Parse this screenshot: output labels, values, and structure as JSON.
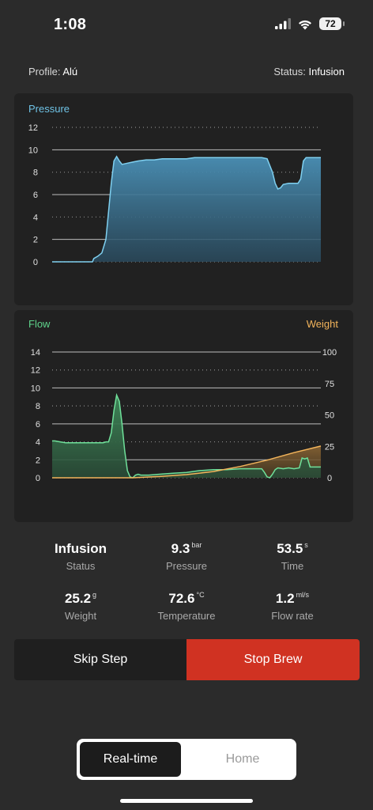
{
  "status_bar": {
    "time": "1:08",
    "battery": "72"
  },
  "profile": {
    "label": "Profile:",
    "value": "Alú"
  },
  "status": {
    "label": "Status:",
    "value": "Infusion"
  },
  "pressure_chart_data": {
    "type": "area",
    "title": "Pressure",
    "ylim": [
      0,
      12
    ],
    "yticks": [
      "12",
      "10",
      "8",
      "6",
      "4",
      "2",
      "0"
    ],
    "color": "#6fc3e6",
    "points": [
      [
        0,
        0
      ],
      [
        1,
        0
      ],
      [
        2,
        0
      ],
      [
        3,
        0
      ],
      [
        4,
        0
      ],
      [
        5,
        0
      ],
      [
        6,
        0
      ],
      [
        7,
        0
      ],
      [
        8,
        0
      ],
      [
        9,
        0
      ],
      [
        10,
        0
      ],
      [
        11,
        0
      ],
      [
        12,
        0
      ],
      [
        13,
        0
      ],
      [
        14,
        0
      ],
      [
        15,
        0
      ],
      [
        15.5,
        0.3
      ],
      [
        17,
        0.5
      ],
      [
        18.5,
        0.8
      ],
      [
        20,
        2
      ],
      [
        21,
        4.5
      ],
      [
        22,
        7
      ],
      [
        23,
        9
      ],
      [
        24,
        9.4
      ],
      [
        25,
        9
      ],
      [
        26,
        8.7
      ],
      [
        28,
        8.8
      ],
      [
        30,
        8.9
      ],
      [
        32,
        9
      ],
      [
        35,
        9.1
      ],
      [
        38,
        9.1
      ],
      [
        41,
        9.2
      ],
      [
        44,
        9.2
      ],
      [
        47,
        9.2
      ],
      [
        50,
        9.2
      ],
      [
        53,
        9.3
      ],
      [
        56,
        9.3
      ],
      [
        59,
        9.3
      ],
      [
        62,
        9.3
      ],
      [
        65,
        9.3
      ],
      [
        68,
        9.3
      ],
      [
        71,
        9.3
      ],
      [
        74,
        9.3
      ],
      [
        78,
        9.3
      ],
      [
        80,
        9.2
      ],
      [
        82,
        8
      ],
      [
        83,
        7
      ],
      [
        84,
        6.5
      ],
      [
        85,
        6.6
      ],
      [
        86,
        6.9
      ],
      [
        88,
        7
      ],
      [
        90,
        7
      ],
      [
        91.5,
        7
      ],
      [
        92.5,
        7.4
      ],
      [
        93.5,
        9
      ],
      [
        94.5,
        9.3
      ],
      [
        96,
        9.3
      ],
      [
        97,
        9.3
      ],
      [
        100,
        9.3
      ]
    ]
  },
  "flow_chart_data": {
    "type": "area",
    "title_left": "Flow",
    "title_right": "Weight",
    "y_left_lim": [
      0,
      14
    ],
    "y_left_ticks": [
      "14",
      "12",
      "10",
      "8",
      "6",
      "4",
      "2",
      "0"
    ],
    "y_right_lim": [
      0,
      100
    ],
    "y_right_ticks": [
      "100",
      "75",
      "50",
      "25",
      "0"
    ],
    "flow_color": "#5fd38b",
    "weight_color": "#f2b45b",
    "flow_points": [
      [
        0,
        4.1
      ],
      [
        1,
        4.1
      ],
      [
        3,
        4
      ],
      [
        5,
        3.9
      ],
      [
        8,
        3.9
      ],
      [
        11,
        3.9
      ],
      [
        14,
        3.9
      ],
      [
        17,
        3.9
      ],
      [
        19,
        3.9
      ],
      [
        20,
        4
      ],
      [
        21,
        4
      ],
      [
        22,
        5
      ],
      [
        23,
        7.5
      ],
      [
        24,
        9.2
      ],
      [
        25,
        8.5
      ],
      [
        26,
        6
      ],
      [
        27,
        3
      ],
      [
        28,
        0.8
      ],
      [
        29,
        0.1
      ],
      [
        30,
        0
      ],
      [
        31,
        0.3
      ],
      [
        32,
        0.4
      ],
      [
        33,
        0.3
      ],
      [
        36,
        0.3
      ],
      [
        40,
        0.4
      ],
      [
        45,
        0.5
      ],
      [
        50,
        0.6
      ],
      [
        55,
        0.8
      ],
      [
        60,
        0.9
      ],
      [
        65,
        0.9
      ],
      [
        70,
        1
      ],
      [
        75,
        1
      ],
      [
        78,
        1
      ],
      [
        79,
        0.6
      ],
      [
        80,
        0.1
      ],
      [
        81,
        0
      ],
      [
        82,
        0.4
      ],
      [
        83,
        0.9
      ],
      [
        84,
        1.1
      ],
      [
        86,
        1
      ],
      [
        88,
        1.1
      ],
      [
        90,
        1
      ],
      [
        92,
        1.1
      ],
      [
        93,
        2.2
      ],
      [
        94,
        2.1
      ],
      [
        95,
        2.2
      ],
      [
        96,
        1.2
      ],
      [
        98,
        1.2
      ],
      [
        100,
        1.2
      ]
    ],
    "weight_points": [
      [
        0,
        0
      ],
      [
        29,
        0
      ],
      [
        30,
        0
      ],
      [
        40,
        1
      ],
      [
        50,
        2.5
      ],
      [
        60,
        5
      ],
      [
        70,
        9
      ],
      [
        80,
        14
      ],
      [
        90,
        20
      ],
      [
        100,
        25.2
      ]
    ]
  },
  "stats": [
    {
      "value": "Infusion",
      "unit": "",
      "label": "Status"
    },
    {
      "value": "9.3",
      "unit": "bar",
      "label": "Pressure"
    },
    {
      "value": "53.5",
      "unit": "s",
      "label": "Time"
    },
    {
      "value": "25.2",
      "unit": "g",
      "label": "Weight"
    },
    {
      "value": "72.6",
      "unit": "°C",
      "label": "Temperature"
    },
    {
      "value": "1.2",
      "unit": "ml/s",
      "label": "Flow rate"
    }
  ],
  "buttons": {
    "skip": "Skip Step",
    "stop": "Stop Brew"
  },
  "tabs": {
    "active": "Real-time",
    "inactive": "Home"
  }
}
